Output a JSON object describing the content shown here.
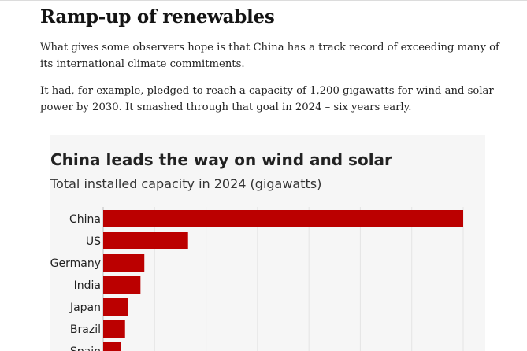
{
  "article": {
    "heading": "Ramp-up of renewables",
    "paragraphs": [
      "What gives some observers hope is that China has a track record of exceeding many of its international climate commitments.",
      "It had, for example, pledged to reach a capacity of 1,200 gigawatts for wind and solar power by 2030. It smashed through that goal in 2024 – six years early."
    ]
  },
  "chart_data": {
    "type": "bar",
    "orientation": "horizontal",
    "title": "China leads the way on wind and solar",
    "subtitle": "Total installed capacity in 2024 (gigawatts)",
    "categories": [
      "China",
      "US",
      "Germany",
      "India",
      "Japan",
      "Brazil",
      "Spain"
    ],
    "values": [
      1400,
      330,
      160,
      145,
      95,
      85,
      70
    ],
    "xlim": [
      0,
      1400
    ],
    "xlabel": "",
    "ylabel": "",
    "bar_color": "#bb0000",
    "grid": true
  },
  "colors": {
    "bar": "#bb0000",
    "chart_background": "#f6f6f6",
    "gridline": "#e4e4e4"
  }
}
